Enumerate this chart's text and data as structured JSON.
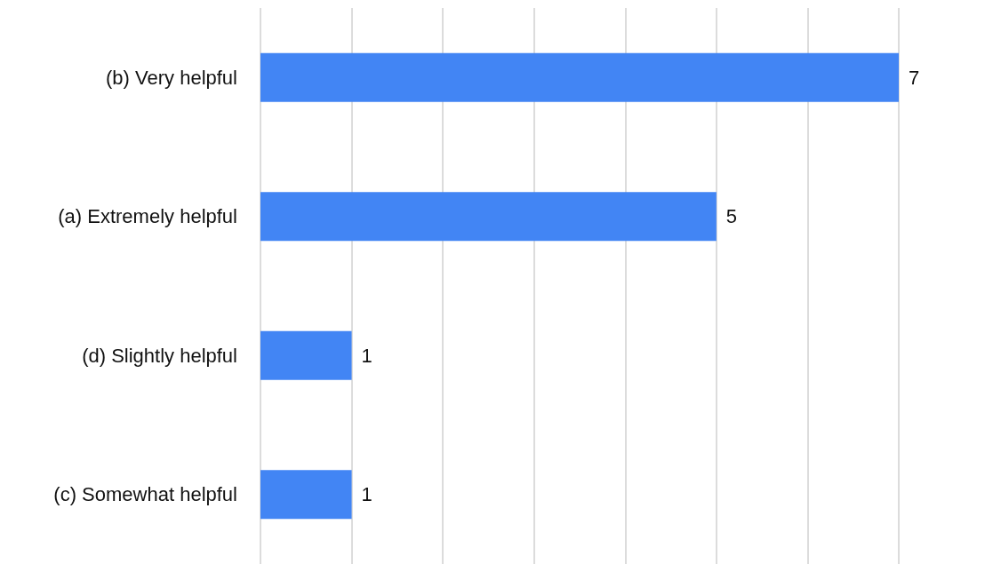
{
  "chart_data": {
    "type": "bar",
    "orientation": "horizontal",
    "categories": [
      "(b) Very helpful",
      "(a) Extremely helpful",
      "(d) Slightly helpful",
      "(c) Somewhat helpful"
    ],
    "values": [
      7,
      5,
      1,
      1
    ],
    "color": "#4285f4",
    "data_labels": true,
    "xlim": [
      0,
      7
    ],
    "xticks": [
      {
        "value": 0,
        "label": null
      },
      {
        "value": 1,
        "label": null
      },
      {
        "value": 2,
        "label": null
      },
      {
        "value": 3,
        "label": null
      },
      {
        "value": 4,
        "label": null
      },
      {
        "value": 5,
        "label": null
      },
      {
        "value": 6,
        "label": null
      },
      {
        "value": 7,
        "label": null
      }
    ],
    "grid": "x",
    "tick_labels": "y"
  }
}
